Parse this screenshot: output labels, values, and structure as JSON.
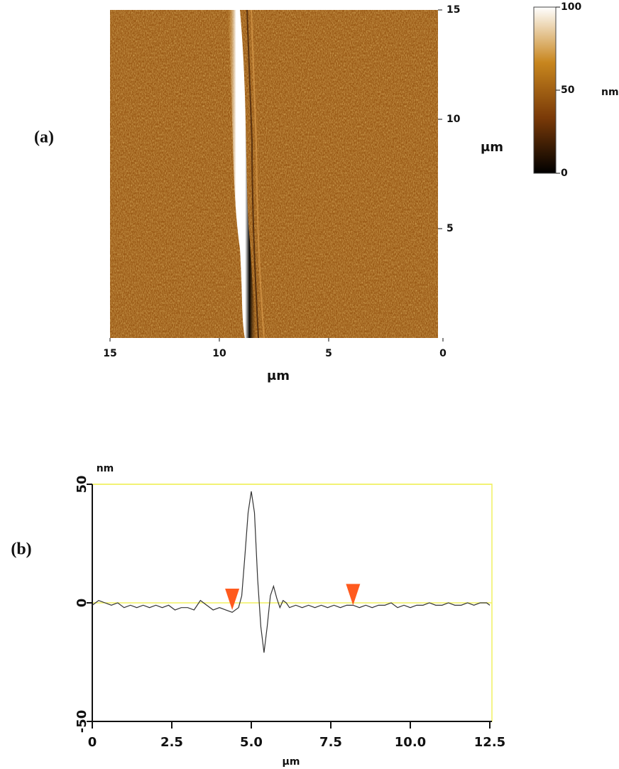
{
  "chart_data": [
    {
      "type": "heatmap",
      "panel_label": "(a)",
      "xlim": [
        15,
        0
      ],
      "xticks": [
        15,
        10,
        5,
        0
      ],
      "xlabel": "μm",
      "ylim": [
        0,
        15
      ],
      "yticks": [
        5,
        10,
        15
      ],
      "ylabel": "μm",
      "colormap": [
        "#000000",
        "#7a3a08",
        "#c8861e",
        "#ffffff"
      ],
      "colorbar": {
        "lim": [
          0,
          100
        ],
        "ticks": [
          0,
          50,
          100
        ],
        "label": "nm"
      }
    },
    {
      "type": "line",
      "panel_label": "(b)",
      "xlim": [
        0,
        12.5
      ],
      "xticks": [
        0,
        2.5,
        {
          "value": 5,
          "label": "5.0"
        },
        7.5,
        {
          "value": 10,
          "label": "10.0"
        },
        12.5
      ],
      "xlabel": "μm",
      "ylim": [
        -50,
        50
      ],
      "yticks": [
        -50,
        0,
        50
      ],
      "ylabel": "nm",
      "frame_color": "#f0f060",
      "color": "#333333",
      "x": [
        0,
        0.2,
        0.4,
        0.6,
        0.8,
        1,
        1.2,
        1.4,
        1.6,
        1.8,
        2,
        2.2,
        2.4,
        2.6,
        2.8,
        3,
        3.2,
        3.4,
        3.6,
        3.8,
        4,
        4.2,
        4.4,
        4.6,
        4.7,
        4.8,
        4.9,
        5,
        5.1,
        5.2,
        5.3,
        5.4,
        5.5,
        5.6,
        5.7,
        5.8,
        5.9,
        6,
        6.1,
        6.2,
        6.4,
        6.6,
        6.8,
        7,
        7.2,
        7.4,
        7.6,
        7.8,
        8,
        8.2,
        8.4,
        8.6,
        8.8,
        9,
        9.2,
        9.4,
        9.6,
        9.8,
        10,
        10.2,
        10.4,
        10.6,
        10.8,
        11,
        11.2,
        11.4,
        11.6,
        11.8,
        12,
        12.2,
        12.4,
        12.5
      ],
      "values": [
        -1,
        1,
        0,
        -1,
        0,
        -2,
        -1,
        -2,
        -1,
        -2,
        -1,
        -2,
        -1,
        -3,
        -2,
        -2,
        -3,
        1,
        -1,
        -3,
        -2,
        -3,
        -4,
        -2,
        3,
        20,
        38,
        47,
        38,
        10,
        -10,
        -21,
        -10,
        3,
        7,
        2,
        -2,
        1,
        0,
        -2,
        -1,
        -2,
        -1,
        -2,
        -1,
        -2,
        -1,
        -2,
        -1,
        -1,
        -2,
        -1,
        -2,
        -1,
        -1,
        0,
        -2,
        -1,
        -2,
        -1,
        -1,
        0,
        -1,
        -1,
        0,
        -1,
        -1,
        0,
        -1,
        0,
        0,
        -1
      ],
      "cursors": {
        "color": "#ff5a1e",
        "x": [
          4.4,
          8.2
        ],
        "y": [
          -3,
          -1
        ]
      }
    }
  ]
}
